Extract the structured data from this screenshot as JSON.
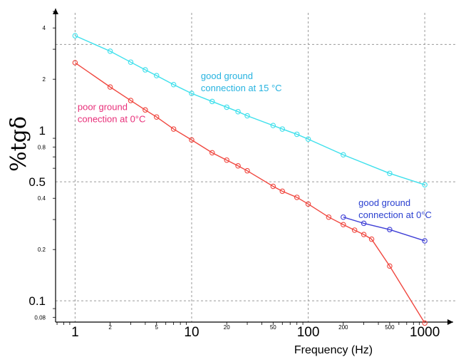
{
  "chart_data": {
    "type": "line",
    "title": "",
    "xlabel": "Frequency (Hz)",
    "ylabel": "%tgδ",
    "x_scale": "log",
    "y_scale": "log",
    "xlim": [
      0.68,
      1250
    ],
    "ylim": [
      0.075,
      5.2
    ],
    "x_ticks": [
      {
        "value": 1,
        "label": "1",
        "major": true
      },
      {
        "value": 2,
        "label": "2",
        "major": false
      },
      {
        "value": 5,
        "label": "5",
        "major": false
      },
      {
        "value": 10,
        "label": "10",
        "major": true
      },
      {
        "value": 20,
        "label": "20",
        "major": false
      },
      {
        "value": 50,
        "label": "50",
        "major": false
      },
      {
        "value": 100,
        "label": "100",
        "major": true
      },
      {
        "value": 200,
        "label": "200",
        "major": false
      },
      {
        "value": 500,
        "label": "500",
        "major": false
      },
      {
        "value": 1000,
        "label": "1000",
        "major": true
      }
    ],
    "y_ticks": [
      {
        "value": 0.08,
        "label": "0.08",
        "major": false
      },
      {
        "value": 0.1,
        "label": "0.1",
        "major": true
      },
      {
        "value": 0.2,
        "label": "0.2",
        "major": false
      },
      {
        "value": 0.4,
        "label": "0.4",
        "major": false
      },
      {
        "value": 0.5,
        "label": "0.5",
        "major": true
      },
      {
        "value": 0.8,
        "label": "0.8",
        "major": false
      },
      {
        "value": 1,
        "label": "1",
        "major": true
      },
      {
        "value": 2,
        "label": "2",
        "major": false
      },
      {
        "value": 4,
        "label": "4",
        "major": false
      }
    ],
    "gridlines_x": [
      1,
      10,
      100,
      1000
    ],
    "gridlines_y": [
      0.1,
      0.5,
      3.2
    ],
    "series": [
      {
        "name": "good ground connection at 15 °C",
        "color": "#3ee0ec",
        "x": [
          1,
          2,
          3,
          4,
          5,
          7,
          10,
          15,
          20,
          25,
          30,
          50,
          60,
          80,
          100,
          200,
          500,
          1000
        ],
        "y": [
          3.6,
          2.92,
          2.52,
          2.27,
          2.1,
          1.86,
          1.65,
          1.48,
          1.37,
          1.29,
          1.22,
          1.07,
          1.02,
          0.95,
          0.89,
          0.72,
          0.56,
          0.48
        ]
      },
      {
        "name": "poor ground conection at 0°C",
        "color": "#f0473f",
        "x": [
          1,
          2,
          3,
          4,
          5,
          7,
          10,
          15,
          20,
          25,
          30,
          50,
          60,
          80,
          100,
          150,
          200,
          250,
          300,
          350,
          500,
          1000
        ],
        "y": [
          2.5,
          1.8,
          1.5,
          1.32,
          1.2,
          1.02,
          0.88,
          0.74,
          0.67,
          0.62,
          0.58,
          0.47,
          0.44,
          0.405,
          0.37,
          0.31,
          0.28,
          0.26,
          0.245,
          0.23,
          0.16,
          0.074
        ]
      },
      {
        "name": "good ground connection at 0°C",
        "color": "#3f3fd6",
        "x": [
          200,
          300,
          500,
          1000
        ],
        "y": [
          0.31,
          0.285,
          0.262,
          0.225
        ]
      }
    ],
    "annotations": [
      {
        "lines": [
          "good ground",
          "connection at 15 °C"
        ],
        "color": "#26b3e0",
        "x": 12,
        "y": 2.0
      },
      {
        "lines": [
          "poor ground",
          "conection at 0°C"
        ],
        "color": "#e8307a",
        "x": 1.05,
        "y": 1.32
      },
      {
        "lines": [
          "good ground",
          "connection at 0°C"
        ],
        "color": "#2a3fd0",
        "x": 270,
        "y": 0.36
      }
    ]
  }
}
